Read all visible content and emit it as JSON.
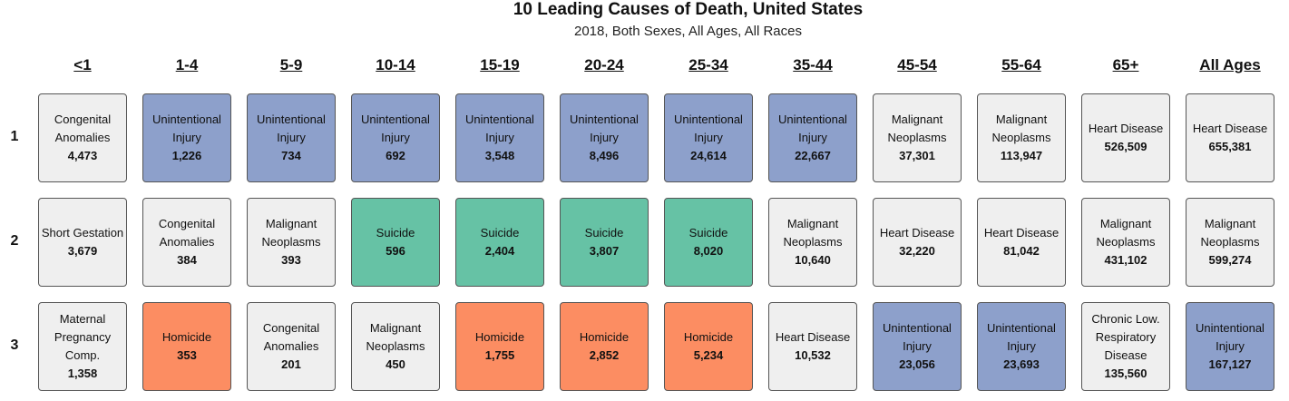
{
  "title": "10 Leading Causes of Death, United States",
  "subtitle": "2018, Both Sexes, All Ages, All Races",
  "colors": {
    "default": "#efefef",
    "injury": "#8da0cb",
    "suicide": "#66c2a5",
    "homicide": "#fc8d62"
  },
  "columns": [
    "<1",
    "1-4",
    "5-9",
    "10-14",
    "15-19",
    "20-24",
    "25-34",
    "35-44",
    "45-54",
    "55-64",
    "65+",
    "All Ages"
  ],
  "ranks": [
    "1",
    "2",
    "3"
  ],
  "chart_data": {
    "type": "table",
    "title": "10 Leading Causes of Death, United States",
    "subtitle": "2018, Both Sexes, All Ages, All Races",
    "rows": [
      [
        {
          "cause": "Congenital Anomalies",
          "count": "4,473",
          "cat": "default"
        },
        {
          "cause": "Unintentional Injury",
          "count": "1,226",
          "cat": "injury"
        },
        {
          "cause": "Unintentional Injury",
          "count": "734",
          "cat": "injury"
        },
        {
          "cause": "Unintentional Injury",
          "count": "692",
          "cat": "injury"
        },
        {
          "cause": "Unintentional Injury",
          "count": "3,548",
          "cat": "injury"
        },
        {
          "cause": "Unintentional Injury",
          "count": "8,496",
          "cat": "injury"
        },
        {
          "cause": "Unintentional Injury",
          "count": "24,614",
          "cat": "injury"
        },
        {
          "cause": "Unintentional Injury",
          "count": "22,667",
          "cat": "injury"
        },
        {
          "cause": "Malignant Neoplasms",
          "count": "37,301",
          "cat": "default"
        },
        {
          "cause": "Malignant Neoplasms",
          "count": "113,947",
          "cat": "default"
        },
        {
          "cause": "Heart Disease",
          "count": "526,509",
          "cat": "default"
        },
        {
          "cause": "Heart Disease",
          "count": "655,381",
          "cat": "default"
        }
      ],
      [
        {
          "cause": "Short Gestation",
          "count": "3,679",
          "cat": "default"
        },
        {
          "cause": "Congenital Anomalies",
          "count": "384",
          "cat": "default"
        },
        {
          "cause": "Malignant Neoplasms",
          "count": "393",
          "cat": "default"
        },
        {
          "cause": "Suicide",
          "count": "596",
          "cat": "suicide"
        },
        {
          "cause": "Suicide",
          "count": "2,404",
          "cat": "suicide"
        },
        {
          "cause": "Suicide",
          "count": "3,807",
          "cat": "suicide"
        },
        {
          "cause": "Suicide",
          "count": "8,020",
          "cat": "suicide"
        },
        {
          "cause": "Malignant Neoplasms",
          "count": "10,640",
          "cat": "default"
        },
        {
          "cause": "Heart Disease",
          "count": "32,220",
          "cat": "default"
        },
        {
          "cause": "Heart Disease",
          "count": "81,042",
          "cat": "default"
        },
        {
          "cause": "Malignant Neoplasms",
          "count": "431,102",
          "cat": "default"
        },
        {
          "cause": "Malignant Neoplasms",
          "count": "599,274",
          "cat": "default"
        }
      ],
      [
        {
          "cause": "Maternal Pregnancy Comp.",
          "count": "1,358",
          "cat": "default"
        },
        {
          "cause": "Homicide",
          "count": "353",
          "cat": "homicide"
        },
        {
          "cause": "Congenital Anomalies",
          "count": "201",
          "cat": "default"
        },
        {
          "cause": "Malignant Neoplasms",
          "count": "450",
          "cat": "default"
        },
        {
          "cause": "Homicide",
          "count": "1,755",
          "cat": "homicide"
        },
        {
          "cause": "Homicide",
          "count": "2,852",
          "cat": "homicide"
        },
        {
          "cause": "Homicide",
          "count": "5,234",
          "cat": "homicide"
        },
        {
          "cause": "Heart Disease",
          "count": "10,532",
          "cat": "default"
        },
        {
          "cause": "Unintentional Injury",
          "count": "23,056",
          "cat": "injury"
        },
        {
          "cause": "Unintentional Injury",
          "count": "23,693",
          "cat": "injury"
        },
        {
          "cause": "Chronic Low. Respiratory Disease",
          "count": "135,560",
          "cat": "default"
        },
        {
          "cause": "Unintentional Injury",
          "count": "167,127",
          "cat": "injury"
        }
      ]
    ]
  }
}
